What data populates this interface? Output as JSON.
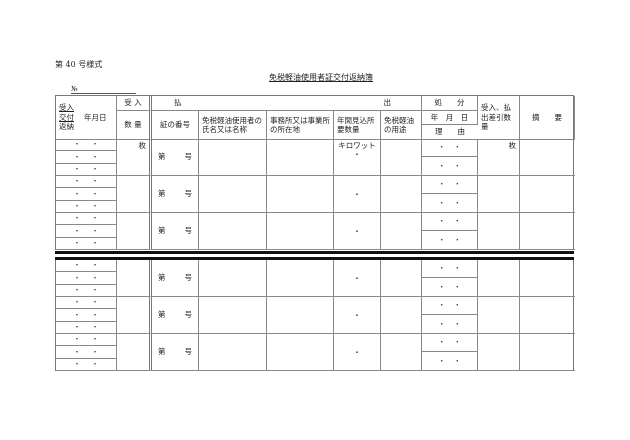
{
  "form_number": "第 40 号様式",
  "title": "免税軽油使用者証交付返納簿",
  "number_label": "№",
  "header": {
    "date_col": [
      "受入",
      "交付",
      "返納"
    ],
    "date_label": "年月日",
    "receive": "受 入",
    "quantity": "数 量",
    "pay": "払",
    "out": "出",
    "cert_no": "証の番号",
    "user_name": "免税軽油使用者の氏名又は名称",
    "office": "事務所又は事業所の所在地",
    "annual": "年間見込所要数量",
    "usage": "免税軽油の用途",
    "disposal": "処　　分",
    "disp_date": "年　月　日",
    "reason": "理　　由",
    "balance": "受入、払出差引数量",
    "remarks": "摘　　要"
  },
  "cells": {
    "dot": "・",
    "sheet_unit": "枚",
    "number_prefix": "第",
    "number_suffix": "号",
    "kw_unit": "キロワット"
  },
  "blocks": [
    [
      {
        "first": true
      },
      {
        "first": false
      },
      {
        "first": false
      }
    ],
    [
      {
        "first": false
      },
      {
        "first": false
      },
      {
        "first": false
      }
    ]
  ]
}
